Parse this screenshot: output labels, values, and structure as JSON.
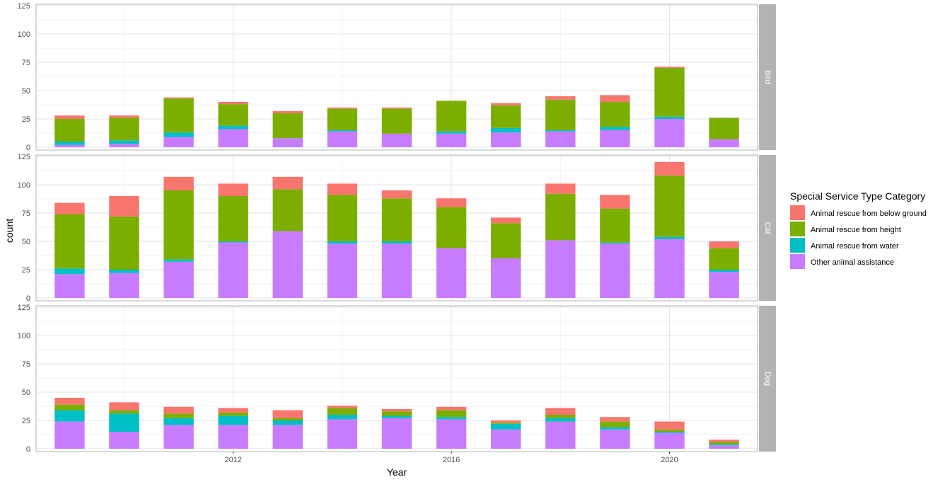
{
  "chart_data": {
    "type": "bar",
    "stacked": true,
    "faceted": true,
    "xlabel": "Year",
    "ylabel": "count",
    "ylim": [
      0,
      125
    ],
    "yticks": [
      0,
      25,
      50,
      75,
      100,
      125
    ],
    "xticks": [
      2012,
      2016,
      2020
    ],
    "grid": true,
    "years": [
      2009,
      2010,
      2011,
      2012,
      2013,
      2014,
      2015,
      2016,
      2017,
      2018,
      2019,
      2020,
      2021
    ],
    "legend": {
      "title": "Special Service Type Category",
      "position": "right",
      "entries": [
        {
          "name": "Animal rescue from below ground",
          "color": "#F8766D"
        },
        {
          "name": "Animal rescue from height",
          "color": "#7CAE00"
        },
        {
          "name": "Animal rescue from water",
          "color": "#00BFC4"
        },
        {
          "name": "Other animal assistance",
          "color": "#C77CFF"
        }
      ]
    },
    "facets": [
      {
        "label": "Bird",
        "series": [
          {
            "name": "Other animal assistance",
            "values": [
              2,
              3,
              9,
              16,
              8,
              14,
              12,
              12,
              13,
              14,
              15,
              25,
              7
            ]
          },
          {
            "name": "Animal rescue from water",
            "values": [
              3,
              3,
              4,
              3,
              0,
              1,
              0,
              2,
              4,
              1,
              3,
              2,
              0
            ]
          },
          {
            "name": "Animal rescue from height",
            "values": [
              20,
              20,
              30,
              19,
              22,
              19,
              22,
              27,
              20,
              27,
              22,
              43,
              19
            ]
          },
          {
            "name": "Animal rescue from below ground",
            "values": [
              3,
              2,
              1,
              2,
              2,
              1,
              1,
              0,
              2,
              3,
              6,
              1,
              0
            ]
          }
        ]
      },
      {
        "label": "Cat",
        "series": [
          {
            "name": "Other animal assistance",
            "values": [
              21,
              22,
              32,
              49,
              59,
              48,
              48,
              44,
              35,
              51,
              48,
              52,
              23
            ]
          },
          {
            "name": "Animal rescue from water",
            "values": [
              5,
              3,
              2,
              1,
              0,
              2,
              2,
              0,
              0,
              0,
              1,
              2,
              2
            ]
          },
          {
            "name": "Animal rescue from height",
            "values": [
              48,
              47,
              61,
              40,
              37,
              41,
              38,
              36,
              31,
              41,
              30,
              54,
              19
            ]
          },
          {
            "name": "Animal rescue from below ground",
            "values": [
              10,
              18,
              12,
              11,
              11,
              10,
              7,
              8,
              5,
              9,
              12,
              12,
              6
            ]
          }
        ]
      },
      {
        "label": "Dog",
        "series": [
          {
            "name": "Other animal assistance",
            "values": [
              24,
              15,
              21,
              21,
              21,
              26,
              27,
              26,
              17,
              24,
              17,
              14,
              3
            ]
          },
          {
            "name": "Animal rescue from water",
            "values": [
              10,
              16,
              6,
              8,
              4,
              4,
              2,
              2,
              5,
              3,
              2,
              1,
              1
            ]
          },
          {
            "name": "Animal rescue from height",
            "values": [
              5,
              3,
              4,
              3,
              2,
              6,
              4,
              6,
              1,
              3,
              5,
              2,
              2
            ]
          },
          {
            "name": "Animal rescue from below ground",
            "values": [
              6,
              7,
              6,
              4,
              7,
              2,
              2,
              3,
              2,
              6,
              4,
              7,
              2
            ]
          }
        ]
      }
    ]
  }
}
